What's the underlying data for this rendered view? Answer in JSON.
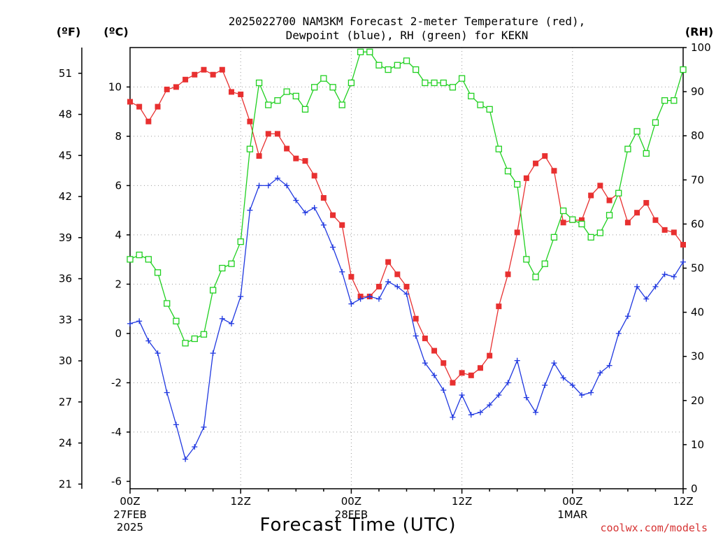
{
  "title_line1": "2025022700 NAM3KM Forecast 2-meter Temperature (red),",
  "title_line2": "Dewpoint (blue), RH (green) for KEKN",
  "unit_f": "(ºF)",
  "unit_c": "(ºC)",
  "unit_rh": "(RH)",
  "xlabel": "Forecast Time (UTC)",
  "credit": "coolwx.com/models",
  "colors": {
    "temperature": "#e83030",
    "dewpoint": "#2038e0",
    "rh": "#20d020"
  },
  "chart_data": {
    "type": "line",
    "title": "2025022700 NAM3KM Forecast 2-meter Temperature (red), Dewpoint (blue), RH (green) for KEKN",
    "xlabel": "Forecast Time (UTC)",
    "x_unit": "forecast hour from 2025-02-27 00Z",
    "xlim": [
      0,
      60
    ],
    "x_ticks": [
      {
        "hour": 0,
        "label": "00Z",
        "date": "27FEB",
        "year": "2025"
      },
      {
        "hour": 12,
        "label": "12Z",
        "date": "",
        "year": ""
      },
      {
        "hour": 24,
        "label": "00Z",
        "date": "28FEB",
        "year": ""
      },
      {
        "hour": 36,
        "label": "12Z",
        "date": "",
        "year": ""
      },
      {
        "hour": 48,
        "label": "00Z",
        "date": "1MAR",
        "year": ""
      },
      {
        "hour": 60,
        "label": "12Z",
        "date": "",
        "year": ""
      }
    ],
    "left_axis_c": {
      "label": "(ºC)",
      "range": [
        -6.3,
        11.6
      ],
      "ticks": [
        -6,
        -4,
        -2,
        0,
        2,
        4,
        6,
        8,
        10
      ]
    },
    "left_axis_f": {
      "label": "(ºF)",
      "ticks": [
        21,
        24,
        27,
        30,
        33,
        36,
        39,
        42,
        45,
        48,
        51
      ]
    },
    "right_axis_rh": {
      "label": "(RH)",
      "range": [
        0,
        100
      ],
      "ticks": [
        0,
        10,
        20,
        30,
        40,
        50,
        60,
        70,
        80,
        90,
        100
      ]
    },
    "grid": true,
    "x": [
      0,
      1,
      2,
      3,
      4,
      5,
      6,
      7,
      8,
      9,
      10,
      11,
      12,
      13,
      14,
      15,
      16,
      17,
      18,
      19,
      20,
      21,
      22,
      23,
      24,
      25,
      26,
      27,
      28,
      29,
      30,
      31,
      32,
      33,
      34,
      35,
      36,
      37,
      38,
      39,
      40,
      41,
      42,
      43,
      44,
      45,
      46,
      47,
      48,
      49,
      50,
      51,
      52,
      53,
      54,
      55,
      56,
      57,
      58,
      59,
      60
    ],
    "series": [
      {
        "name": "Temperature",
        "axis": "celsius",
        "marker": "filled-square",
        "values": [
          9.4,
          9.2,
          8.6,
          9.2,
          9.9,
          10.0,
          10.3,
          10.5,
          10.7,
          10.5,
          10.7,
          9.8,
          9.7,
          8.6,
          7.2,
          8.1,
          8.1,
          7.5,
          7.1,
          7.0,
          6.4,
          5.5,
          4.8,
          4.4,
          2.3,
          1.5,
          1.5,
          1.9,
          2.9,
          2.4,
          1.9,
          0.6,
          -0.2,
          -0.7,
          -1.2,
          -2.0,
          -1.6,
          -1.7,
          -1.4,
          -0.9,
          1.1,
          2.4,
          4.1,
          6.3,
          6.9,
          7.2,
          6.6,
          4.5,
          4.6,
          4.6,
          5.6,
          6.0,
          5.4,
          5.7,
          4.5,
          4.9,
          5.3,
          4.6,
          4.2,
          4.1,
          3.6
        ]
      },
      {
        "name": "Dewpoint",
        "axis": "celsius",
        "marker": "plus",
        "values": [
          0.4,
          0.5,
          -0.3,
          -0.8,
          -2.4,
          -3.7,
          -5.1,
          -4.6,
          -3.8,
          -0.8,
          0.6,
          0.4,
          1.5,
          5.0,
          6.0,
          6.0,
          6.3,
          6.0,
          5.4,
          4.9,
          5.1,
          4.4,
          3.5,
          2.5,
          1.2,
          1.4,
          1.5,
          1.4,
          2.1,
          1.9,
          1.6,
          -0.1,
          -1.2,
          -1.7,
          -2.3,
          -3.4,
          -2.5,
          -3.3,
          -3.2,
          -2.9,
          -2.5,
          -2.0,
          -1.1,
          -2.6,
          -3.2,
          -2.1,
          -1.2,
          -1.8,
          -2.1,
          -2.5,
          -2.4,
          -1.6,
          -1.3,
          0.0,
          0.7,
          1.9,
          1.4,
          1.9,
          2.4,
          2.3,
          2.9
        ]
      },
      {
        "name": "RH",
        "axis": "rh",
        "marker": "open-square",
        "values": [
          52,
          53,
          52,
          49,
          42,
          38,
          33,
          34,
          35,
          45,
          50,
          51,
          56,
          77,
          92,
          87,
          88,
          90,
          89,
          86,
          91,
          93,
          91,
          87,
          92,
          99,
          99,
          96,
          95,
          96,
          97,
          95,
          92,
          92,
          92,
          91,
          93,
          89,
          87,
          86,
          77,
          72,
          69,
          52,
          48,
          51,
          57,
          63,
          61,
          60,
          57,
          58,
          62,
          67,
          77,
          81,
          76,
          83,
          88,
          88,
          95
        ]
      }
    ]
  }
}
